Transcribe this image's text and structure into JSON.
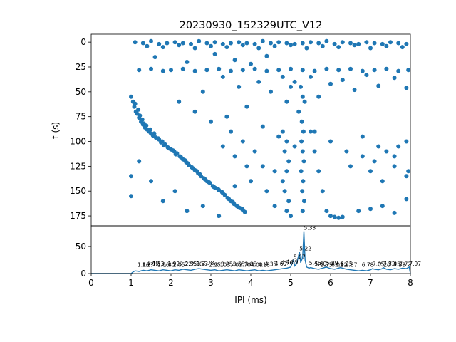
{
  "chart_data": [
    {
      "type": "scatter",
      "title": "20230930_152329UTC_V12",
      "xlabel": "",
      "ylabel": "t (s)",
      "xlim": [
        0,
        8
      ],
      "ylim": [
        185,
        -8
      ],
      "y_inverted": true,
      "yticks": [
        "0",
        "25",
        "50",
        "75",
        "100",
        "125",
        "150",
        "175"
      ],
      "marker_color": "#1f77b4",
      "grid": false,
      "description_of_pattern": "",
      "points": [
        [
          1.0,
          55
        ],
        [
          1.05,
          60
        ],
        [
          1.08,
          65
        ],
        [
          1.12,
          70
        ],
        [
          1.15,
          72
        ],
        [
          1.2,
          76
        ],
        [
          1.25,
          80
        ],
        [
          1.3,
          83
        ],
        [
          1.35,
          86
        ],
        [
          1.4,
          88
        ],
        [
          1.45,
          90
        ],
        [
          1.5,
          92
        ],
        [
          1.55,
          94
        ],
        [
          1.62,
          96
        ],
        [
          1.7,
          98
        ],
        [
          1.78,
          100
        ],
        [
          1.85,
          103
        ],
        [
          1.92,
          106
        ],
        [
          2.0,
          108
        ],
        [
          2.08,
          110
        ],
        [
          2.15,
          112
        ],
        [
          2.22,
          115
        ],
        [
          2.3,
          118
        ],
        [
          2.38,
          121
        ],
        [
          2.45,
          124
        ],
        [
          2.52,
          126
        ],
        [
          2.6,
          129
        ],
        [
          2.68,
          132
        ],
        [
          2.75,
          135
        ],
        [
          2.82,
          137
        ],
        [
          2.9,
          140
        ],
        [
          2.98,
          142
        ],
        [
          3.05,
          145
        ],
        [
          3.12,
          147
        ],
        [
          3.2,
          149
        ],
        [
          3.28,
          151
        ],
        [
          3.35,
          154
        ],
        [
          3.42,
          157
        ],
        [
          3.5,
          160
        ],
        [
          3.58,
          163
        ],
        [
          3.65,
          165
        ],
        [
          3.72,
          167
        ],
        [
          3.8,
          169
        ],
        [
          3.85,
          171
        ],
        [
          1.1,
          62
        ],
        [
          1.18,
          68
        ],
        [
          1.22,
          74
        ],
        [
          1.28,
          78
        ],
        [
          1.32,
          82
        ],
        [
          1.38,
          84
        ],
        [
          1.48,
          88
        ],
        [
          1.58,
          92
        ],
        [
          1.68,
          97
        ],
        [
          1.75,
          101
        ],
        [
          1.82,
          104
        ],
        [
          1.95,
          107
        ],
        [
          2.05,
          109
        ],
        [
          2.12,
          113
        ],
        [
          2.25,
          116
        ],
        [
          2.35,
          119
        ],
        [
          2.42,
          122
        ],
        [
          2.55,
          127
        ],
        [
          2.65,
          130
        ],
        [
          2.72,
          133
        ],
        [
          2.85,
          138
        ],
        [
          2.95,
          141
        ],
        [
          3.08,
          146
        ],
        [
          3.18,
          148
        ],
        [
          3.3,
          152
        ],
        [
          3.45,
          158
        ],
        [
          3.55,
          161
        ],
        [
          3.68,
          166
        ],
        [
          3.78,
          168
        ],
        [
          1.1,
          0
        ],
        [
          1.3,
          1
        ],
        [
          1.5,
          -1
        ],
        [
          1.7,
          2
        ],
        [
          1.9,
          1
        ],
        [
          2.1,
          0
        ],
        [
          2.3,
          1
        ],
        [
          2.5,
          2
        ],
        [
          2.7,
          -1
        ],
        [
          2.9,
          1
        ],
        [
          3.1,
          0
        ],
        [
          3.3,
          2
        ],
        [
          3.5,
          1
        ],
        [
          3.7,
          0
        ],
        [
          3.9,
          1
        ],
        [
          4.1,
          2
        ],
        [
          4.3,
          -1
        ],
        [
          4.5,
          1
        ],
        [
          4.7,
          0
        ],
        [
          4.9,
          1
        ],
        [
          5.1,
          2
        ],
        [
          5.3,
          1
        ],
        [
          5.5,
          0
        ],
        [
          5.7,
          1
        ],
        [
          5.9,
          -1
        ],
        [
          6.1,
          2
        ],
        [
          6.3,
          0
        ],
        [
          6.5,
          1
        ],
        [
          6.7,
          2
        ],
        [
          6.9,
          0
        ],
        [
          7.1,
          1
        ],
        [
          7.3,
          2
        ],
        [
          7.5,
          0
        ],
        [
          7.7,
          1
        ],
        [
          7.9,
          2
        ],
        [
          1.4,
          4
        ],
        [
          1.8,
          5
        ],
        [
          2.2,
          3
        ],
        [
          2.6,
          6
        ],
        [
          3.0,
          4
        ],
        [
          3.4,
          5
        ],
        [
          3.8,
          3
        ],
        [
          4.2,
          6
        ],
        [
          4.6,
          4
        ],
        [
          5.0,
          3
        ],
        [
          5.4,
          6
        ],
        [
          5.8,
          4
        ],
        [
          6.2,
          5
        ],
        [
          6.6,
          3
        ],
        [
          7.0,
          6
        ],
        [
          7.4,
          4
        ],
        [
          7.8,
          5
        ],
        [
          1.2,
          28
        ],
        [
          1.5,
          27
        ],
        [
          1.8,
          29
        ],
        [
          2.0,
          28
        ],
        [
          2.3,
          27
        ],
        [
          2.6,
          29
        ],
        [
          2.9,
          28
        ],
        [
          3.2,
          27
        ],
        [
          3.5,
          29
        ],
        [
          3.8,
          28
        ],
        [
          4.1,
          27
        ],
        [
          4.4,
          29
        ],
        [
          4.7,
          28
        ],
        [
          5.0,
          27
        ],
        [
          5.3,
          28
        ],
        [
          5.6,
          29
        ],
        [
          5.9,
          27
        ],
        [
          6.2,
          28
        ],
        [
          6.5,
          27
        ],
        [
          6.8,
          29
        ],
        [
          7.1,
          28
        ],
        [
          7.4,
          27
        ],
        [
          7.7,
          29
        ],
        [
          7.95,
          28
        ],
        [
          1.6,
          15
        ],
        [
          2.4,
          20
        ],
        [
          3.1,
          12
        ],
        [
          3.6,
          18
        ],
        [
          4.0,
          22
        ],
        [
          4.4,
          14
        ],
        [
          4.8,
          35
        ],
        [
          5.1,
          40
        ],
        [
          5.25,
          45
        ],
        [
          5.3,
          55
        ],
        [
          5.35,
          60
        ],
        [
          5.2,
          70
        ],
        [
          5.28,
          80
        ],
        [
          5.32,
          90
        ],
        [
          5.27,
          100
        ],
        [
          5.3,
          110
        ],
        [
          5.33,
          120
        ],
        [
          5.26,
          130
        ],
        [
          5.31,
          140
        ],
        [
          5.29,
          150
        ],
        [
          5.34,
          160
        ],
        [
          5.3,
          170
        ],
        [
          4.2,
          40
        ],
        [
          4.5,
          50
        ],
        [
          4.9,
          60
        ],
        [
          5.0,
          45
        ],
        [
          5.5,
          35
        ],
        [
          5.7,
          55
        ],
        [
          6.0,
          42
        ],
        [
          6.3,
          38
        ],
        [
          6.6,
          48
        ],
        [
          6.9,
          33
        ],
        [
          7.2,
          44
        ],
        [
          7.6,
          36
        ],
        [
          7.9,
          46
        ],
        [
          3.3,
          35
        ],
        [
          3.7,
          45
        ],
        [
          2.8,
          50
        ],
        [
          2.2,
          60
        ],
        [
          2.6,
          70
        ],
        [
          3.0,
          80
        ],
        [
          3.4,
          75
        ],
        [
          3.9,
          65
        ],
        [
          4.3,
          85
        ],
        [
          4.7,
          95
        ],
        [
          5.1,
          105
        ],
        [
          5.6,
          90
        ],
        [
          6.0,
          100
        ],
        [
          6.4,
          110
        ],
        [
          6.8,
          95
        ],
        [
          7.2,
          105
        ],
        [
          7.6,
          115
        ],
        [
          7.9,
          100
        ],
        [
          4.8,
          90
        ],
        [
          4.9,
          100
        ],
        [
          4.85,
          110
        ],
        [
          4.95,
          120
        ],
        [
          4.9,
          130
        ],
        [
          4.8,
          140
        ],
        [
          4.85,
          150
        ],
        [
          4.95,
          160
        ],
        [
          4.9,
          170
        ],
        [
          5.5,
          90
        ],
        [
          5.6,
          110
        ],
        [
          5.7,
          130
        ],
        [
          5.8,
          150
        ],
        [
          5.9,
          170
        ],
        [
          6.0,
          175
        ],
        [
          6.1,
          176
        ],
        [
          6.2,
          177
        ],
        [
          6.3,
          176
        ],
        [
          1.0,
          135
        ],
        [
          1.0,
          155
        ],
        [
          1.2,
          120
        ],
        [
          1.5,
          140
        ],
        [
          1.8,
          160
        ],
        [
          2.1,
          150
        ],
        [
          2.4,
          170
        ],
        [
          2.8,
          165
        ],
        [
          3.2,
          175
        ],
        [
          3.6,
          145
        ],
        [
          4.0,
          140
        ],
        [
          4.4,
          150
        ],
        [
          4.6,
          165
        ],
        [
          5.0,
          175
        ],
        [
          6.7,
          170
        ],
        [
          7.0,
          168
        ],
        [
          7.3,
          165
        ],
        [
          7.6,
          172
        ],
        [
          7.9,
          158
        ],
        [
          7.0,
          130
        ],
        [
          7.3,
          140
        ],
        [
          7.6,
          125
        ],
        [
          7.9,
          135
        ],
        [
          6.5,
          125
        ],
        [
          6.8,
          115
        ],
        [
          7.1,
          120
        ],
        [
          7.4,
          110
        ],
        [
          7.7,
          105
        ],
        [
          7.95,
          130
        ],
        [
          3.5,
          90
        ],
        [
          3.8,
          100
        ],
        [
          4.1,
          110
        ],
        [
          4.3,
          125
        ],
        [
          4.6,
          130
        ],
        [
          3.9,
          125
        ],
        [
          3.6,
          115
        ],
        [
          3.3,
          105
        ]
      ]
    },
    {
      "type": "line",
      "title": "",
      "xlabel": "IPI (ms)",
      "ylabel": "",
      "xlim": [
        0,
        8
      ],
      "ylim": [
        0,
        88
      ],
      "xticks": [
        "0",
        "1",
        "2",
        "3",
        "4",
        "5",
        "6",
        "7",
        "8"
      ],
      "yticks": [
        "0",
        "50"
      ],
      "line_color": "#1f77b4",
      "grid": false,
      "x": [
        0,
        1.0,
        1.05,
        1.1,
        1.2,
        1.3,
        1.4,
        1.5,
        1.6,
        1.7,
        1.8,
        1.9,
        2.0,
        2.1,
        2.2,
        2.3,
        2.4,
        2.5,
        2.6,
        2.7,
        2.8,
        2.9,
        3.0,
        3.1,
        3.2,
        3.3,
        3.4,
        3.5,
        3.6,
        3.7,
        3.8,
        3.9,
        4.0,
        4.1,
        4.2,
        4.3,
        4.4,
        4.5,
        4.6,
        4.7,
        4.8,
        4.9,
        5.0,
        5.07,
        5.1,
        5.15,
        5.22,
        5.25,
        5.3,
        5.33,
        5.36,
        5.4,
        5.46,
        5.5,
        5.6,
        5.7,
        5.8,
        5.89,
        6.0,
        6.1,
        6.25,
        6.3,
        6.4,
        6.5,
        6.6,
        6.7,
        6.8,
        6.9,
        7.0,
        7.05,
        7.1,
        7.2,
        7.3,
        7.32,
        7.4,
        7.5,
        7.6,
        7.7,
        7.8,
        7.9,
        7.97,
        8.0
      ],
      "values": [
        0,
        0,
        3,
        5,
        4,
        6,
        5,
        7,
        6,
        5,
        7,
        6,
        5,
        7,
        6,
        8,
        7,
        6,
        8,
        9,
        8,
        7,
        6,
        7,
        5,
        6,
        7,
        6,
        5,
        7,
        6,
        5,
        6,
        7,
        5,
        6,
        5,
        6,
        7,
        8,
        9,
        10,
        12,
        25,
        14,
        18,
        40,
        20,
        30,
        78,
        25,
        12,
        10,
        11,
        9,
        8,
        10,
        12,
        9,
        8,
        11,
        10,
        8,
        7,
        6,
        5,
        6,
        5,
        7,
        9,
        8,
        7,
        9,
        11,
        8,
        7,
        9,
        8,
        10,
        9,
        12,
        0
      ],
      "annotations": [
        {
          "x": 1.16,
          "value": 10,
          "label": "1.16"
        },
        {
          "x": 1.27,
          "value": 10,
          "label": "1.27"
        },
        {
          "x": 1.4,
          "value": 13,
          "label": "1.40"
        },
        {
          "x": 1.53,
          "value": 12,
          "label": "1.53"
        },
        {
          "x": 1.66,
          "value": 10,
          "label": "1.66"
        },
        {
          "x": 1.8,
          "value": 10,
          "label": "1.80"
        },
        {
          "x": 1.92,
          "value": 12,
          "label": "1.92"
        },
        {
          "x": 2.05,
          "value": 10,
          "label": "2.05"
        },
        {
          "x": 2.22,
          "value": 11,
          "label": "2.22"
        },
        {
          "x": 2.35,
          "value": 12,
          "label": "2.35"
        },
        {
          "x": 2.5,
          "value": 11,
          "label": "2.50"
        },
        {
          "x": 2.63,
          "value": 12,
          "label": "2.63"
        },
        {
          "x": 2.78,
          "value": 13,
          "label": "2.78"
        },
        {
          "x": 2.95,
          "value": 10,
          "label": "2.95"
        },
        {
          "x": 3.1,
          "value": 10,
          "label": "3.10"
        },
        {
          "x": 3.25,
          "value": 11,
          "label": "3.25"
        },
        {
          "x": 3.4,
          "value": 10,
          "label": "3.40"
        },
        {
          "x": 3.55,
          "value": 11,
          "label": "3.55"
        },
        {
          "x": 3.7,
          "value": 10,
          "label": "3.70"
        },
        {
          "x": 3.85,
          "value": 11,
          "label": "3.85"
        },
        {
          "x": 4.0,
          "value": 10,
          "label": "4.00"
        },
        {
          "x": 4.18,
          "value": 10,
          "label": "4.18"
        },
        {
          "x": 4.35,
          "value": 11,
          "label": "4.35"
        },
        {
          "x": 4.6,
          "value": 12,
          "label": "4.60"
        },
        {
          "x": 4.76,
          "value": 14,
          "label": "4.76"
        },
        {
          "x": 4.89,
          "value": 15,
          "label": "4.89"
        },
        {
          "x": 5.07,
          "value": 24,
          "label": "5.07"
        },
        {
          "x": 5.22,
          "value": 40,
          "label": "5.22"
        },
        {
          "x": 5.33,
          "value": 78,
          "label": "5.33"
        },
        {
          "x": 5.46,
          "value": 13,
          "label": "5.46"
        },
        {
          "x": 5.6,
          "value": 12,
          "label": "5.60"
        },
        {
          "x": 5.75,
          "value": 10,
          "label": "5.75"
        },
        {
          "x": 5.89,
          "value": 13,
          "label": "5.89"
        },
        {
          "x": 6.02,
          "value": 10,
          "label": "6.02"
        },
        {
          "x": 6.12,
          "value": 10,
          "label": "6.12"
        },
        {
          "x": 6.25,
          "value": 12,
          "label": "6.25"
        },
        {
          "x": 6.37,
          "value": 10,
          "label": "6.37"
        },
        {
          "x": 6.78,
          "value": 10,
          "label": "6.78"
        },
        {
          "x": 7.05,
          "value": 11,
          "label": "7.05"
        },
        {
          "x": 7.2,
          "value": 10,
          "label": "7.20"
        },
        {
          "x": 7.32,
          "value": 12,
          "label": "7.32"
        },
        {
          "x": 7.45,
          "value": 11,
          "label": "7.45"
        },
        {
          "x": 7.58,
          "value": 10,
          "label": "7.58"
        },
        {
          "x": 7.72,
          "value": 11,
          "label": "7.72"
        },
        {
          "x": 7.97,
          "value": 12,
          "label": "7.97"
        }
      ]
    }
  ]
}
